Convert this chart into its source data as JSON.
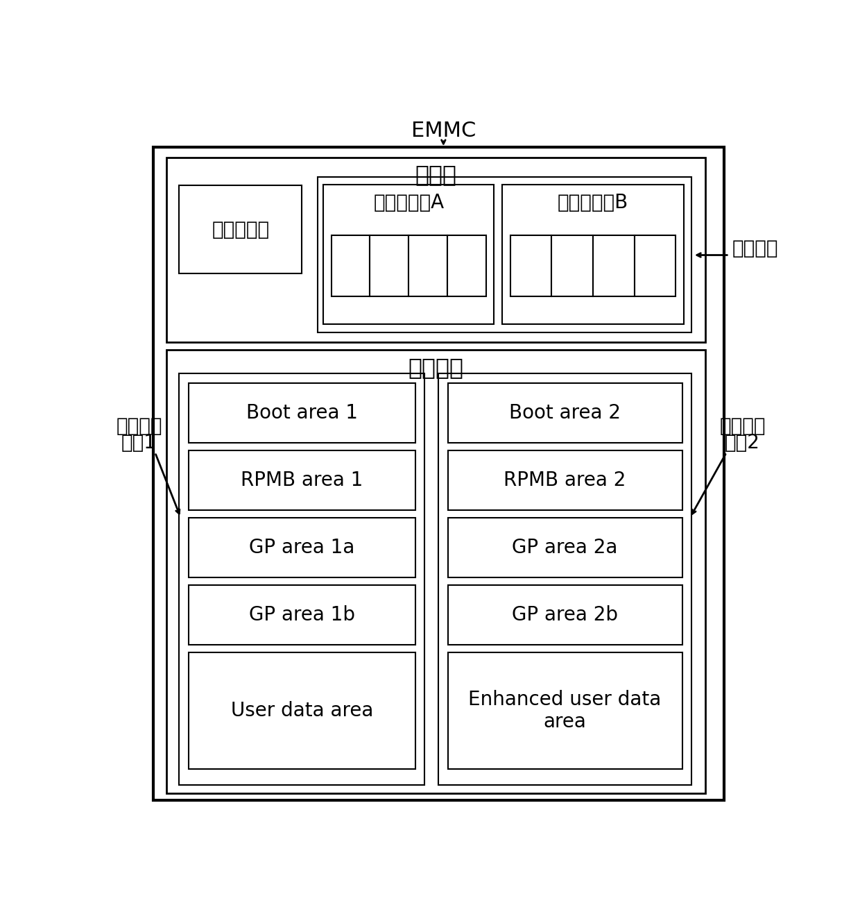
{
  "title_emmc": "EMMC",
  "title_controller": "控制器",
  "title_storage": "存储介质",
  "label_partition_reg": "分区寄存器",
  "label_config_a": "配置寄存器A",
  "label_config_b": "配置寄存器B",
  "label_reg_group": "寄存器组",
  "label_sys_part1_line1": "系统操作",
  "label_sys_part1_line2": "分区1",
  "label_sys_part2_line1": "系统操作",
  "label_sys_part2_line2": "分区2",
  "areas_left": [
    "Boot area 1",
    "RPMB area 1",
    "GP area 1a",
    "GP area 1b",
    "User data area"
  ],
  "areas_right": [
    "Boot area 2",
    "RPMB area 2",
    "GP area 2a",
    "GP area 2b",
    "Enhanced user data\narea"
  ],
  "n_slots_a": 4,
  "n_slots_b": 4,
  "bg_color": "#ffffff",
  "box_color": "#000000",
  "lw_outer": 3.0,
  "lw_mid": 2.0,
  "lw_inner": 1.5
}
